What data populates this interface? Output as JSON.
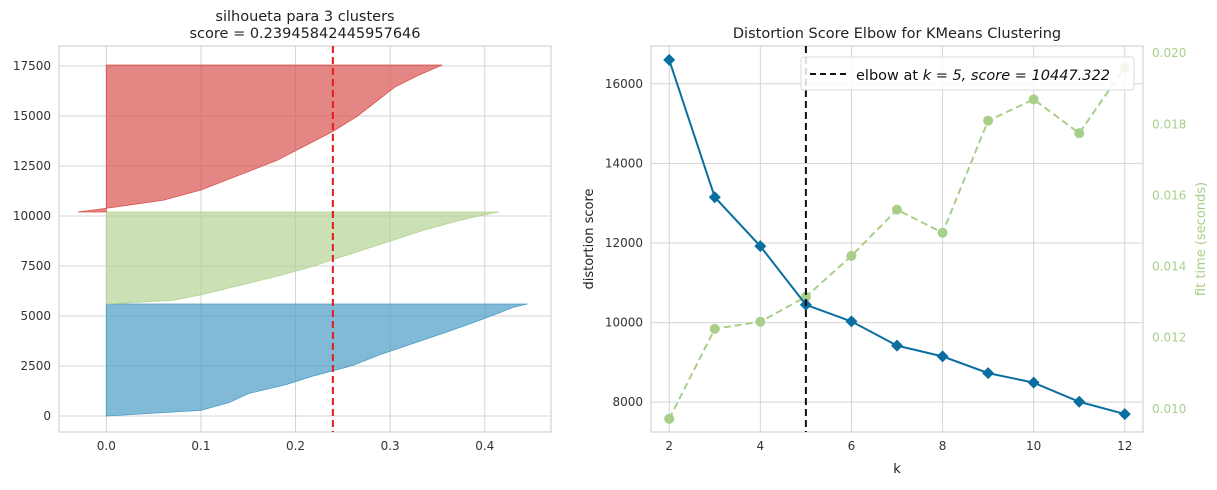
{
  "chart_data": [
    {
      "type": "area",
      "subtype": "silhouette-plot",
      "title": "silhoueta para 3 clusters",
      "subtitle": "score = 0.23945842445957646",
      "xlabel": "",
      "ylabel": "",
      "xlim": [
        -0.05,
        0.47
      ],
      "ylim": [
        -800,
        18500
      ],
      "x_ticks": [
        0.0,
        0.1,
        0.2,
        0.3,
        0.4
      ],
      "x_tick_labels": [
        "0.0",
        "0.1",
        "0.2",
        "0.3",
        "0.4"
      ],
      "y_ticks": [
        0,
        2500,
        5000,
        7500,
        10000,
        12500,
        15000,
        17500
      ],
      "y_tick_labels": [
        "0",
        "2500",
        "5000",
        "7500",
        "10000",
        "12500",
        "15000",
        "17500"
      ],
      "grid": true,
      "score_line": {
        "value": 0.2394584244,
        "color": "#e41a1c",
        "style": "dashed"
      },
      "clusters": [
        {
          "color": "#4c9cc4",
          "y_range": [
            0,
            5600
          ],
          "profile": [
            [
              0,
              0.0
            ],
            [
              0.05,
              0.1
            ],
            [
              0.12,
              0.13
            ],
            [
              0.2,
              0.15
            ],
            [
              0.28,
              0.19
            ],
            [
              0.36,
              0.22
            ],
            [
              0.45,
              0.26
            ],
            [
              0.55,
              0.29
            ],
            [
              0.65,
              0.325
            ],
            [
              0.75,
              0.36
            ],
            [
              0.84,
              0.39
            ],
            [
              0.92,
              0.415
            ],
            [
              0.97,
              0.43
            ],
            [
              1.0,
              0.445
            ]
          ]
        },
        {
          "color": "#b5d394",
          "y_range": [
            5600,
            10200
          ],
          "profile": [
            [
              0,
              0.0
            ],
            [
              0.04,
              0.07
            ],
            [
              0.1,
              0.1
            ],
            [
              0.2,
              0.14
            ],
            [
              0.3,
              0.18
            ],
            [
              0.4,
              0.215
            ],
            [
              0.5,
              0.245
            ],
            [
              0.6,
              0.275
            ],
            [
              0.7,
              0.305
            ],
            [
              0.8,
              0.335
            ],
            [
              0.9,
              0.37
            ],
            [
              0.96,
              0.395
            ],
            [
              1.0,
              0.415
            ]
          ]
        },
        {
          "color": "#d9534f",
          "y_range": [
            10200,
            17550
          ],
          "profile": [
            [
              0,
              -0.03
            ],
            [
              0.03,
              0.005
            ],
            [
              0.08,
              0.06
            ],
            [
              0.15,
              0.1
            ],
            [
              0.25,
              0.14
            ],
            [
              0.35,
              0.18
            ],
            [
              0.45,
              0.21
            ],
            [
              0.55,
              0.24
            ],
            [
              0.65,
              0.265
            ],
            [
              0.75,
              0.285
            ],
            [
              0.85,
              0.305
            ],
            [
              0.93,
              0.33
            ],
            [
              1.0,
              0.355
            ]
          ]
        }
      ]
    },
    {
      "type": "line",
      "title": "Distortion Score Elbow for KMeans Clustering",
      "xlabel": "k",
      "ylabel": "distortion score",
      "y2label": "fit time (seconds)",
      "x": [
        2,
        3,
        4,
        5,
        6,
        7,
        8,
        9,
        10,
        11,
        12
      ],
      "xlim": [
        1.6,
        12.4
      ],
      "ylim": [
        7250,
        16950
      ],
      "y2lim": [
        0.00935,
        0.0202
      ],
      "x_tick_labels": [
        "2",
        "4",
        "6",
        "8",
        "10",
        "12"
      ],
      "y_ticks": [
        8000,
        10000,
        12000,
        14000,
        16000
      ],
      "y_tick_labels": [
        "8000",
        "10000",
        "12000",
        "14000",
        "16000"
      ],
      "y2_ticks": [
        0.01,
        0.012,
        0.014,
        0.016,
        0.018,
        0.02
      ],
      "y2_tick_labels": [
        "0.010",
        "0.012",
        "0.014",
        "0.016",
        "0.018",
        "0.020"
      ],
      "grid": true,
      "series": [
        {
          "axis": "left",
          "color": "#0a6fa0",
          "marker": "diamond",
          "values": [
            16600,
            13150,
            11920,
            10447.322,
            10030,
            9420,
            9150,
            8730,
            8490,
            8010,
            7700
          ]
        },
        {
          "axis": "right",
          "color": "#a8cf8a",
          "marker": "circle",
          "style": "dashed",
          "values": [
            0.00972,
            0.01225,
            0.01245,
            0.01315,
            0.0143,
            0.0156,
            0.01495,
            0.0181,
            0.0187,
            0.01775,
            0.0196
          ]
        }
      ],
      "elbow": {
        "k": 5,
        "score": 10447.322,
        "legend_text": "elbow at ",
        "legend_math": "k = 5, score = 10447.322",
        "legend_placement": "top-right"
      }
    }
  ]
}
